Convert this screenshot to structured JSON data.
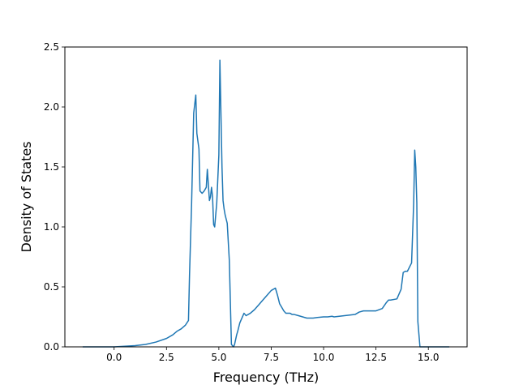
{
  "chart_data": {
    "type": "line",
    "title": "",
    "xlabel": "Frequency (THz)",
    "ylabel": "Density of States",
    "xlim": [
      -2.35,
      16.85
    ],
    "ylim": [
      0,
      2.5
    ],
    "xticks": [
      0.0,
      2.5,
      5.0,
      7.5,
      10.0,
      12.5,
      15.0
    ],
    "xtick_labels": [
      "0.0",
      "2.5",
      "5.0",
      "7.5",
      "10.0",
      "12.5",
      "15.0"
    ],
    "yticks": [
      0.0,
      0.5,
      1.0,
      1.5,
      2.0,
      2.5
    ],
    "ytick_labels": [
      "0.0",
      "0.5",
      "1.0",
      "1.5",
      "2.0",
      "2.5"
    ],
    "grid": false,
    "line_color": "#1f77b4",
    "series": [
      {
        "x": [
          -1.5,
          -1.0,
          -0.5,
          0.0,
          0.5,
          1.0,
          1.5,
          2.0,
          2.5,
          2.8,
          3.0,
          3.2,
          3.4,
          3.55,
          3.6,
          3.7,
          3.8,
          3.9,
          3.95,
          4.05,
          4.1,
          4.2,
          4.3,
          4.4,
          4.45,
          4.5,
          4.55,
          4.6,
          4.65,
          4.7,
          4.75,
          4.8,
          4.9,
          5.0,
          5.05,
          5.15,
          5.2,
          5.25,
          5.3,
          5.4,
          5.5,
          5.6,
          5.7,
          5.75,
          5.85,
          5.9,
          6.0,
          6.2,
          6.3,
          6.5,
          6.7,
          6.9,
          7.1,
          7.3,
          7.5,
          7.7,
          7.8,
          7.9,
          8.0,
          8.1,
          8.2,
          8.4,
          8.5,
          8.6,
          8.8,
          9.0,
          9.2,
          9.4,
          9.5,
          9.7,
          10.0,
          10.2,
          10.4,
          10.5,
          11.0,
          11.5,
          11.7,
          11.9,
          12.0,
          12.5,
          12.8,
          13.0,
          13.1,
          13.2,
          13.5,
          13.7,
          13.8,
          13.9,
          14.0,
          14.2,
          14.3,
          14.35,
          14.4,
          14.45,
          14.5,
          14.6,
          14.65,
          15.0,
          15.5,
          16.0
        ],
        "y": [
          0.0,
          0.0,
          0.0,
          0.0,
          0.005,
          0.01,
          0.02,
          0.04,
          0.07,
          0.1,
          0.13,
          0.15,
          0.18,
          0.22,
          0.6,
          1.2,
          1.95,
          2.1,
          1.78,
          1.65,
          1.3,
          1.28,
          1.3,
          1.33,
          1.48,
          1.35,
          1.22,
          1.25,
          1.33,
          1.25,
          1.02,
          1.0,
          1.2,
          1.6,
          2.39,
          1.5,
          1.22,
          1.15,
          1.1,
          1.03,
          0.72,
          0.02,
          0.0,
          0.02,
          0.1,
          0.13,
          0.2,
          0.28,
          0.26,
          0.28,
          0.31,
          0.35,
          0.39,
          0.43,
          0.47,
          0.49,
          0.43,
          0.36,
          0.33,
          0.3,
          0.28,
          0.28,
          0.27,
          0.27,
          0.26,
          0.25,
          0.24,
          0.24,
          0.24,
          0.245,
          0.25,
          0.25,
          0.255,
          0.25,
          0.26,
          0.27,
          0.29,
          0.3,
          0.3,
          0.3,
          0.32,
          0.37,
          0.39,
          0.39,
          0.4,
          0.48,
          0.62,
          0.63,
          0.63,
          0.7,
          1.2,
          1.64,
          1.5,
          1.2,
          0.21,
          0.0,
          0.0,
          0.0,
          0.0,
          0.0
        ]
      }
    ]
  }
}
